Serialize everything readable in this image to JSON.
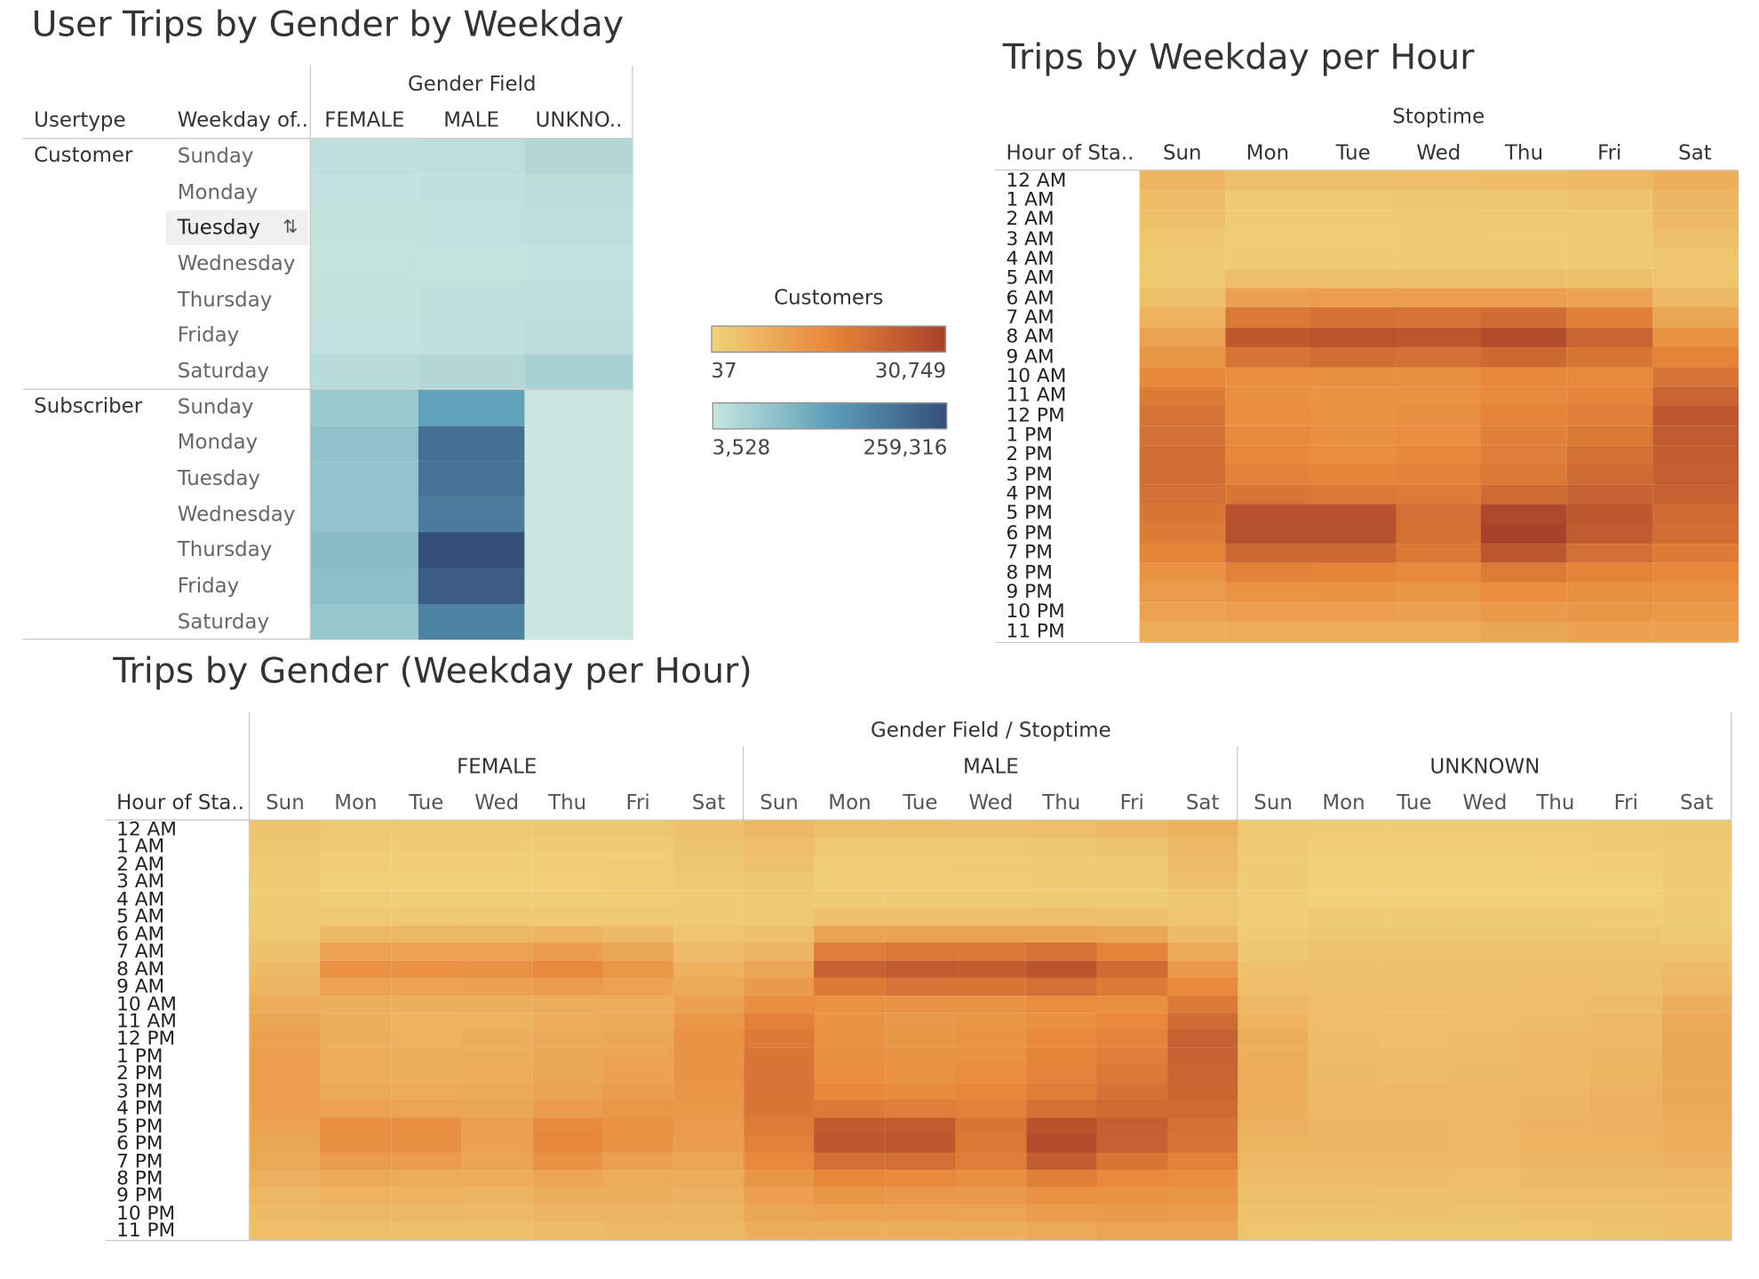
{
  "panel1": {
    "title": "User Trips by Gender by Weekday",
    "gender_header": "Gender Field",
    "usertype_header": "Usertype",
    "weekday_header": "Weekday of..",
    "gender_cols": [
      "FEMALE",
      "MALE",
      "UNKNO.."
    ],
    "usertypes": [
      "Customer",
      "Subscriber"
    ],
    "weekdays": [
      "Sunday",
      "Monday",
      "Tuesday",
      "Wednesday",
      "Thursday",
      "Friday",
      "Saturday"
    ]
  },
  "panel2": {
    "title": "Trips by Weekday per Hour",
    "stoptime_header": "Stoptime",
    "hour_header": "Hour of Sta..",
    "days": [
      "Sun",
      "Mon",
      "Tue",
      "Wed",
      "Thu",
      "Fri",
      "Sat"
    ]
  },
  "panel3": {
    "title": "Trips by Gender (Weekday per Hour)",
    "top_header": "Gender Field / Stoptime",
    "hour_header": "Hour of Sta..",
    "genders": [
      "FEMALE",
      "MALE",
      "UNKNOWN"
    ],
    "days": [
      "Sun",
      "Mon",
      "Tue",
      "Wed",
      "Thu",
      "Fri",
      "Sat"
    ]
  },
  "legend": {
    "title": "Customers",
    "orange_min": "37",
    "orange_max": "30,749",
    "blue_min": "3,528",
    "blue_max": "259,316",
    "orange_colors": [
      "#f0d27a",
      "#e8873a",
      "#a9422a"
    ],
    "blue_colors": [
      "#c8e6de",
      "#5c9fb8",
      "#34507a"
    ]
  },
  "hours": [
    "12 AM",
    "1 AM",
    "2 AM",
    "3 AM",
    "4 AM",
    "5 AM",
    "6 AM",
    "7 AM",
    "8 AM",
    "9 AM",
    "10 AM",
    "11 AM",
    "12 PM",
    "1 PM",
    "2 PM",
    "3 PM",
    "4 PM",
    "5 PM",
    "6 PM",
    "7 PM",
    "8 PM",
    "9 PM",
    "10 PM",
    "11 PM"
  ],
  "chart_data": [
    {
      "type": "heatmap",
      "title": "User Trips by Gender by Weekday",
      "x": [
        "FEMALE",
        "MALE",
        "UNKNOWN"
      ],
      "y_groups": [
        "Customer",
        "Subscriber"
      ],
      "y": [
        "Sunday",
        "Monday",
        "Tuesday",
        "Wednesday",
        "Thursday",
        "Friday",
        "Saturday"
      ],
      "color_range": [
        3528,
        259316
      ],
      "values": {
        "Customer": [
          [
            10000,
            11000,
            20000
          ],
          [
            8000,
            9000,
            12000
          ],
          [
            7000,
            8000,
            11000
          ],
          [
            6000,
            6500,
            8000
          ],
          [
            7000,
            9000,
            11000
          ],
          [
            8000,
            9000,
            12000
          ],
          [
            15000,
            20000,
            31000
          ]
        ],
        "Subscriber": [
          [
            45000,
            110000,
            3600
          ],
          [
            55000,
            200000,
            3600
          ],
          [
            53000,
            195000,
            3600
          ],
          [
            50000,
            180000,
            3600
          ],
          [
            65000,
            259316,
            3600
          ],
          [
            60000,
            235000,
            3600
          ],
          [
            48000,
            165000,
            3600
          ]
        ]
      }
    },
    {
      "type": "heatmap",
      "title": "Trips by Weekday per Hour",
      "x": [
        "Sun",
        "Mon",
        "Tue",
        "Wed",
        "Thu",
        "Fri",
        "Sat"
      ],
      "y": [
        "12 AM",
        "1 AM",
        "2 AM",
        "3 AM",
        "4 AM",
        "5 AM",
        "6 AM",
        "7 AM",
        "8 AM",
        "9 AM",
        "10 AM",
        "11 AM",
        "12 PM",
        "1 PM",
        "2 PM",
        "3 PM",
        "4 PM",
        "5 PM",
        "6 PM",
        "7 PM",
        "8 PM",
        "9 PM",
        "10 PM",
        "11 PM"
      ],
      "color_range": [
        37,
        30749
      ],
      "values": [
        [
          3500,
          2000,
          2000,
          2100,
          2400,
          3000,
          4500
        ],
        [
          2500,
          900,
          900,
          1000,
          1100,
          1500,
          3500
        ],
        [
          1800,
          500,
          500,
          550,
          650,
          900,
          2800
        ],
        [
          1200,
          300,
          300,
          350,
          400,
          500,
          1900
        ],
        [
          900,
          500,
          500,
          500,
          550,
          600,
          1200
        ],
        [
          900,
          2000,
          2000,
          2000,
          2000,
          1900,
          1300
        ],
        [
          2000,
          7000,
          7500,
          7500,
          7500,
          6500,
          3000
        ],
        [
          4000,
          16000,
          17500,
          17000,
          19000,
          14000,
          6000
        ],
        [
          6500,
          24000,
          25500,
          25000,
          28000,
          21000,
          9500
        ],
        [
          9000,
          17000,
          18500,
          18000,
          20000,
          16500,
          13000
        ],
        [
          12000,
          11000,
          10500,
          10500,
          12000,
          11500,
          17000
        ],
        [
          15000,
          10500,
          9500,
          10000,
          11500,
          13000,
          21000
        ],
        [
          17000,
          11000,
          10000,
          10500,
          13000,
          14500,
          24000
        ],
        [
          18000,
          11500,
          10500,
          11000,
          14000,
          16000,
          23500
        ],
        [
          18500,
          12000,
          11000,
          12000,
          14500,
          17500,
          23000
        ],
        [
          18500,
          13500,
          12500,
          13500,
          16000,
          19500,
          22500
        ],
        [
          18000,
          16500,
          16000,
          15000,
          19500,
          21500,
          21500
        ],
        [
          16500,
          26000,
          26000,
          18000,
          28500,
          24500,
          19500
        ],
        [
          15000,
          26500,
          26500,
          17500,
          30749,
          23500,
          18500
        ],
        [
          13000,
          20000,
          20000,
          16000,
          25000,
          18000,
          15000
        ],
        [
          10000,
          13500,
          13000,
          11500,
          15500,
          13000,
          12000
        ],
        [
          8000,
          10000,
          9500,
          9000,
          11000,
          10500,
          10000
        ],
        [
          6500,
          7500,
          7500,
          7000,
          8500,
          9000,
          8500
        ],
        [
          5000,
          5000,
          5000,
          5000,
          6000,
          7000,
          7000
        ]
      ]
    },
    {
      "type": "heatmap",
      "title": "Trips by Gender (Weekday per Hour)",
      "x_groups": [
        "FEMALE",
        "MALE",
        "UNKNOWN"
      ],
      "x": [
        "Sun",
        "Mon",
        "Tue",
        "Wed",
        "Thu",
        "Fri",
        "Sat"
      ],
      "y": [
        "12 AM",
        "1 AM",
        "2 AM",
        "3 AM",
        "4 AM",
        "5 AM",
        "6 AM",
        "7 AM",
        "8 AM",
        "9 AM",
        "10 AM",
        "11 AM",
        "12 PM",
        "1 PM",
        "2 PM",
        "3 PM",
        "4 PM",
        "5 PM",
        "6 PM",
        "7 PM",
        "8 PM",
        "9 PM",
        "10 PM",
        "11 PM"
      ],
      "color_range": [
        37,
        30749
      ],
      "values": {
        "FEMALE": [
          [
            1500,
            800,
            800,
            850,
            950,
            1100,
            1800
          ],
          [
            1100,
            400,
            400,
            400,
            450,
            550,
            1400
          ],
          [
            800,
            250,
            250,
            250,
            300,
            350,
            1100
          ],
          [
            500,
            150,
            150,
            150,
            200,
            250,
            800
          ],
          [
            400,
            250,
            250,
            250,
            300,
            300,
            500
          ],
          [
            400,
            900,
            900,
            900,
            900,
            850,
            600
          ],
          [
            900,
            3200,
            3300,
            3300,
            3400,
            2900,
            1200
          ],
          [
            1700,
            6500,
            6500,
            6800,
            7800,
            5700,
            2400
          ],
          [
            2700,
            9800,
            9800,
            9800,
            11500,
            8800,
            3800
          ],
          [
            3600,
            6800,
            6800,
            7000,
            8000,
            6700,
            5300
          ],
          [
            5000,
            4400,
            4200,
            4200,
            4800,
            4600,
            7000
          ],
          [
            6000,
            4200,
            3800,
            4000,
            4600,
            5300,
            8700
          ],
          [
            7000,
            4400,
            4000,
            4200,
            5300,
            5800,
            9800
          ],
          [
            7500,
            4600,
            4200,
            4400,
            5600,
            6400,
            9600
          ],
          [
            7500,
            4800,
            4400,
            4800,
            5800,
            7000,
            9400
          ],
          [
            7500,
            5400,
            5000,
            5400,
            6400,
            7800,
            9200
          ],
          [
            7300,
            6600,
            6400,
            6000,
            7800,
            8700,
            8800
          ],
          [
            6800,
            10500,
            10500,
            7200,
            11500,
            9800,
            8000
          ],
          [
            6100,
            10600,
            10600,
            7000,
            12300,
            9400,
            7600
          ],
          [
            5300,
            8000,
            8000,
            6400,
            10000,
            7200,
            6100
          ],
          [
            4100,
            5400,
            5200,
            4600,
            6200,
            5200,
            4900
          ],
          [
            3300,
            4000,
            3800,
            3600,
            4400,
            4200,
            4100
          ],
          [
            2700,
            3000,
            3000,
            2800,
            3400,
            3600,
            3500
          ],
          [
            2100,
            2000,
            2000,
            2000,
            2400,
            2800,
            2900
          ]
        ],
        "MALE": [
          [
            3000,
            1900,
            1900,
            2000,
            2300,
            2800,
            4000
          ],
          [
            2200,
            800,
            800,
            900,
            1000,
            1400,
            3100
          ],
          [
            1600,
            450,
            450,
            500,
            600,
            800,
            2500
          ],
          [
            1000,
            270,
            270,
            300,
            350,
            450,
            1700
          ],
          [
            800,
            450,
            450,
            450,
            500,
            550,
            1100
          ],
          [
            800,
            1800,
            1800,
            1800,
            1800,
            1700,
            1200
          ],
          [
            1800,
            6400,
            6800,
            6800,
            6800,
            5900,
            2700
          ],
          [
            3600,
            14500,
            16000,
            15500,
            17300,
            12700,
            5400
          ],
          [
            5900,
            21800,
            23200,
            22700,
            25500,
            19100,
            8600
          ],
          [
            8200,
            15500,
            16800,
            16400,
            18200,
            15000,
            11800
          ],
          [
            10900,
            10000,
            9500,
            9500,
            10900,
            10500,
            15500
          ],
          [
            13600,
            9500,
            8600,
            9100,
            10500,
            11800,
            19100
          ],
          [
            15500,
            10000,
            9100,
            9500,
            11800,
            13200,
            21800
          ],
          [
            16400,
            10500,
            9500,
            10000,
            12700,
            14500,
            21400
          ],
          [
            16800,
            10900,
            10000,
            10900,
            13200,
            15900,
            20900
          ],
          [
            16800,
            12300,
            11400,
            12300,
            14500,
            17700,
            20500
          ],
          [
            16400,
            15000,
            14500,
            13600,
            17700,
            19500,
            19500
          ],
          [
            15000,
            23600,
            23600,
            16400,
            25900,
            22300,
            17700
          ],
          [
            13600,
            24100,
            24100,
            15900,
            27950,
            21400,
            16800
          ],
          [
            11800,
            18200,
            18200,
            14500,
            22700,
            16400,
            13600
          ],
          [
            9100,
            12300,
            11800,
            10500,
            14100,
            11800,
            10900
          ],
          [
            7300,
            9100,
            8600,
            8200,
            10000,
            9500,
            9100
          ],
          [
            5900,
            6800,
            6800,
            6400,
            7700,
            8200,
            7700
          ],
          [
            4500,
            4500,
            4500,
            4500,
            5500,
            6400,
            6400
          ]
        ],
        "UNKNOWN": [
          [
            900,
            500,
            500,
            500,
            600,
            750,
            1100
          ],
          [
            700,
            250,
            250,
            250,
            300,
            400,
            900
          ],
          [
            500,
            150,
            150,
            150,
            170,
            250,
            700
          ],
          [
            350,
            80,
            80,
            90,
            100,
            130,
            500
          ],
          [
            250,
            130,
            130,
            130,
            150,
            160,
            350
          ],
          [
            250,
            500,
            500,
            500,
            500,
            480,
            350
          ],
          [
            500,
            1000,
            1000,
            1000,
            1000,
            1000,
            750
          ],
          [
            1000,
            1400,
            1400,
            1400,
            1500,
            1400,
            1500
          ],
          [
            1600,
            1800,
            1800,
            1800,
            2000,
            1800,
            2400
          ],
          [
            2300,
            2000,
            2000,
            2000,
            2100,
            2000,
            3300
          ],
          [
            3100,
            2200,
            2100,
            2100,
            2300,
            2400,
            4400
          ],
          [
            3800,
            2300,
            2100,
            2200,
            2500,
            2800,
            5300
          ],
          [
            4300,
            2500,
            2300,
            2400,
            2900,
            3100,
            5800
          ],
          [
            4500,
            2600,
            2400,
            2500,
            3000,
            3400,
            5800
          ],
          [
            4600,
            2700,
            2500,
            2700,
            3100,
            3700,
            5700
          ],
          [
            4600,
            2900,
            2800,
            2900,
            3300,
            3900,
            5600
          ],
          [
            4500,
            3200,
            3100,
            3000,
            3600,
            4100,
            5400
          ],
          [
            4100,
            3600,
            3600,
            3300,
            3900,
            4100,
            4900
          ],
          [
            3700,
            3600,
            3600,
            3200,
            4000,
            4000,
            4600
          ],
          [
            3200,
            3100,
            3100,
            2900,
            3500,
            3400,
            3900
          ],
          [
            2500,
            2500,
            2400,
            2300,
            2700,
            2700,
            3100
          ],
          [
            2000,
            2000,
            1900,
            1900,
            2100,
            2200,
            2600
          ],
          [
            1600,
            1600,
            1600,
            1500,
            1700,
            1900,
            2100
          ],
          [
            1300,
            1100,
            1100,
            1100,
            1300,
            1500,
            1800
          ]
        ]
      }
    }
  ]
}
